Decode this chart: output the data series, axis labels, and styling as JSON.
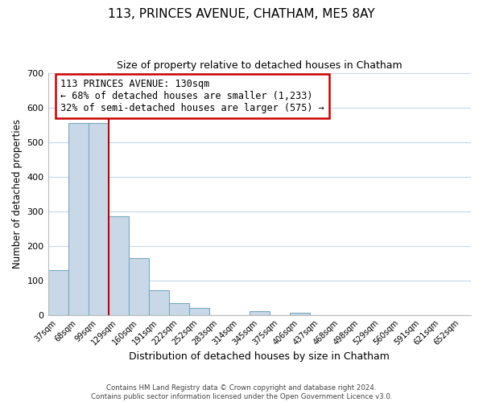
{
  "title": "113, PRINCES AVENUE, CHATHAM, ME5 8AY",
  "subtitle": "Size of property relative to detached houses in Chatham",
  "xlabel": "Distribution of detached houses by size in Chatham",
  "ylabel": "Number of detached properties",
  "categories": [
    "37sqm",
    "68sqm",
    "99sqm",
    "129sqm",
    "160sqm",
    "191sqm",
    "222sqm",
    "252sqm",
    "283sqm",
    "314sqm",
    "345sqm",
    "375sqm",
    "406sqm",
    "437sqm",
    "468sqm",
    "498sqm",
    "529sqm",
    "560sqm",
    "591sqm",
    "621sqm",
    "652sqm"
  ],
  "values": [
    130,
    555,
    555,
    285,
    165,
    70,
    33,
    20,
    0,
    0,
    10,
    0,
    5,
    0,
    0,
    0,
    0,
    0,
    0,
    0,
    0
  ],
  "bar_color": "#c8d8e8",
  "bar_edge_color": "#7aaabf",
  "property_line_index": 3,
  "property_line_color": "#cc0000",
  "annotation_line0": "113 PRINCES AVENUE: 130sqm",
  "annotation_line1": "← 68% of detached houses are smaller (1,233)",
  "annotation_line2": "32% of semi-detached houses are larger (575) →",
  "annotation_box_color": "#ffffff",
  "annotation_box_edge_color": "#cc0000",
  "ylim": [
    0,
    700
  ],
  "yticks": [
    0,
    100,
    200,
    300,
    400,
    500,
    600,
    700
  ],
  "footer_line1": "Contains HM Land Registry data © Crown copyright and database right 2024.",
  "footer_line2": "Contains public sector information licensed under the Open Government Licence v3.0.",
  "background_color": "#ffffff",
  "grid_color": "#c8d8e8"
}
